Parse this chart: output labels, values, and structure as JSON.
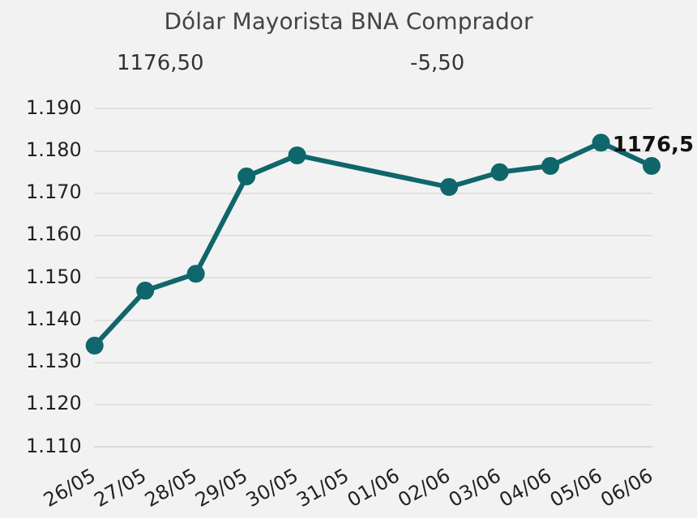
{
  "chart_data": {
    "type": "line",
    "title": "Dólar Mayorista BNA Comprador",
    "annotations": [
      "1176,50",
      "-5,50"
    ],
    "categories": [
      "26/05",
      "27/05",
      "28/05",
      "29/05",
      "30/05",
      "31/05",
      "01/06",
      "02/06",
      "03/06",
      "04/06",
      "05/06",
      "06/06"
    ],
    "series": [
      {
        "color": "#0f666b",
        "values": [
          1134,
          1147,
          1151,
          1174,
          1179,
          null,
          null,
          1171.5,
          1175,
          1176.5,
          1182,
          1176.5
        ],
        "value_labels": [
          null,
          null,
          null,
          null,
          null,
          null,
          null,
          null,
          null,
          null,
          null,
          "1176,5"
        ]
      }
    ],
    "ylim": [
      1110,
      1190
    ],
    "yticks": [
      {
        "value": 1110,
        "label": "1.110"
      },
      {
        "value": 1120,
        "label": "1.120"
      },
      {
        "value": 1130,
        "label": "1.130"
      },
      {
        "value": 1140,
        "label": "1.140"
      },
      {
        "value": 1150,
        "label": "1.150"
      },
      {
        "value": 1160,
        "label": "1.160"
      },
      {
        "value": 1170,
        "label": "1.170"
      },
      {
        "value": 1180,
        "label": "1.180"
      },
      {
        "value": 1190,
        "label": "1.190"
      }
    ],
    "grid": "y",
    "legend": false,
    "marker": "circle",
    "line_style": "solid"
  }
}
